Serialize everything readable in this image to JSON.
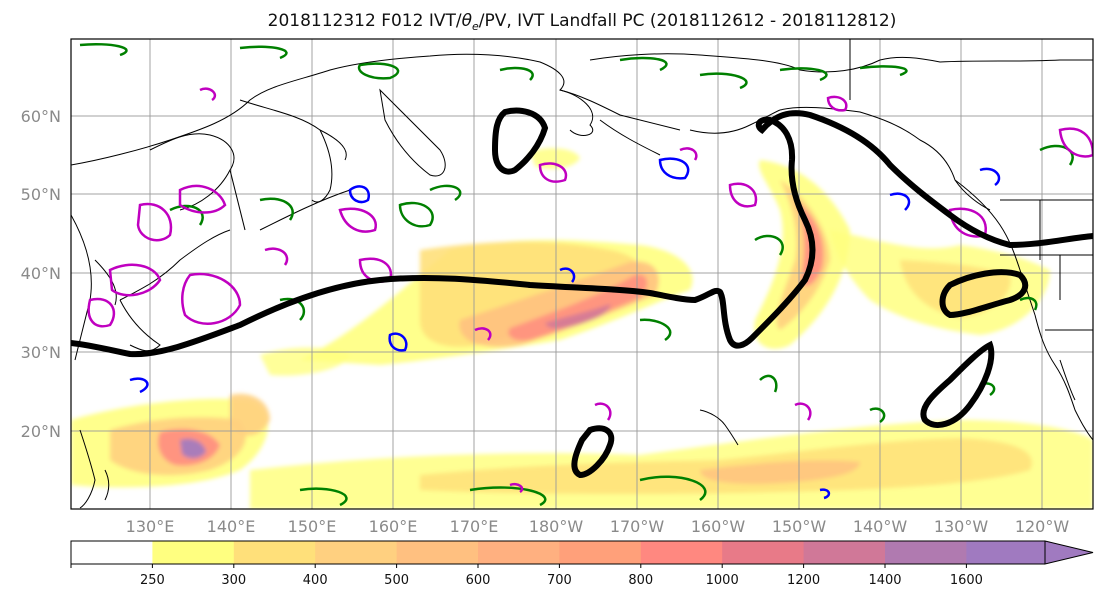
{
  "title": "2018112312 F012 IVT/θe/PV, IVT Landfall PC (2018112612 - 2018112812)",
  "title_parts": {
    "prefix": "2018112312 F012 IVT/",
    "theta": "θ",
    "sub": "e",
    "suffix": "/PV, IVT Landfall PC (2018112612 - 2018112812)"
  },
  "map": {
    "lat_labels": [
      "60°N",
      "50°N",
      "40°N",
      "30°N",
      "20°N"
    ],
    "lon_labels": [
      "130°E",
      "140°E",
      "150°E",
      "160°E",
      "170°E",
      "180°W",
      "170°W",
      "160°W",
      "150°W",
      "140°W",
      "130°W",
      "120°W"
    ]
  },
  "colorbar": {
    "levels": [
      "250",
      "300",
      "400",
      "500",
      "600",
      "700",
      "800",
      "1000",
      "1200",
      "1400",
      "1600"
    ],
    "colors": [
      "#ffffff",
      "#ffff80",
      "#ffe07a",
      "#ffd080",
      "#ffc080",
      "#ffb080",
      "#ffa07a",
      "#ff8880",
      "#e87a88",
      "#d07898",
      "#b07ab0",
      "#a07ac0"
    ],
    "extend": "max"
  },
  "colors": {
    "theta_e": "#000000",
    "pv_magenta": "#c000c0",
    "pv_blue": "#0000ff",
    "pv_green": "#008000"
  }
}
